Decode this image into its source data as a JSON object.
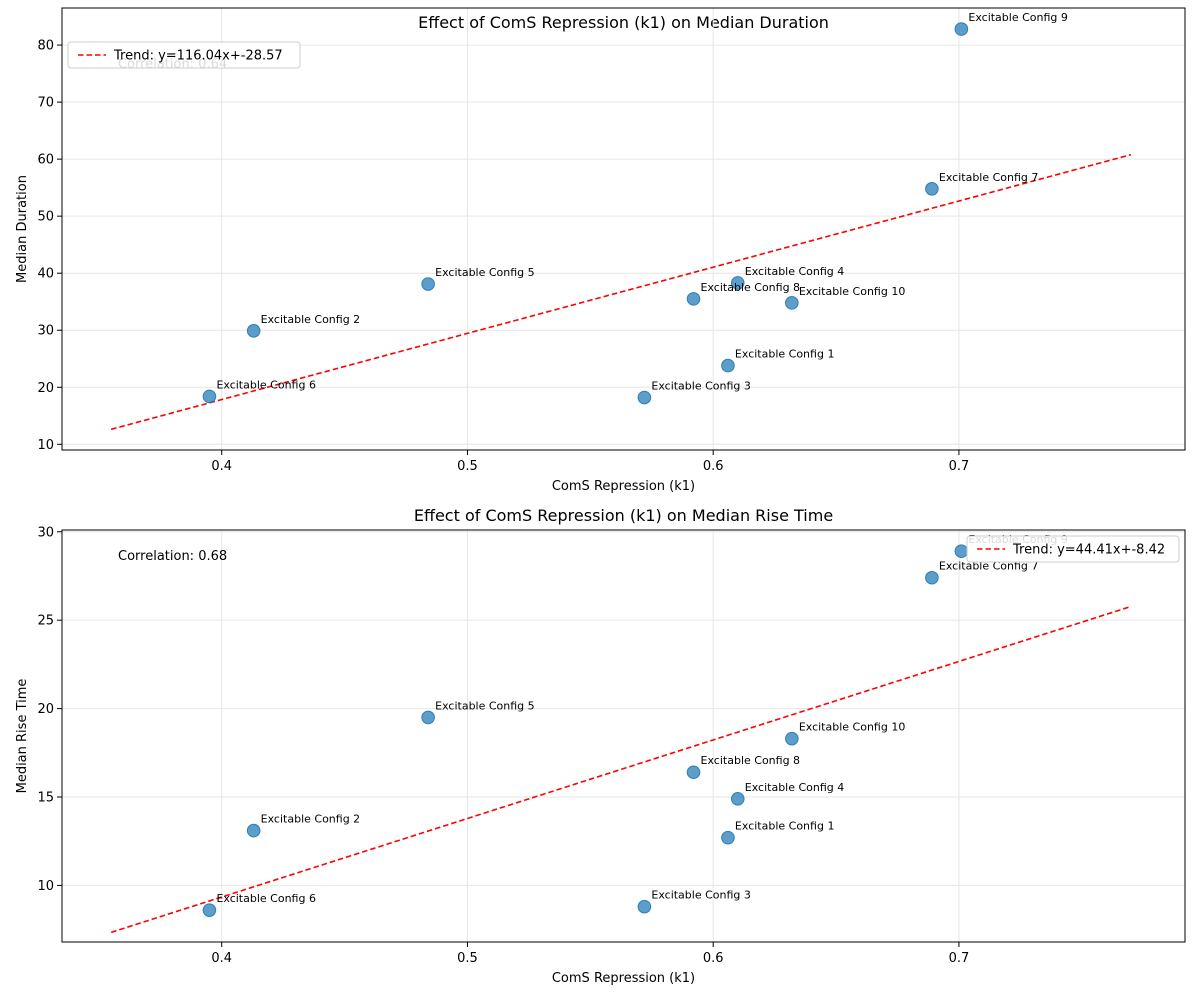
{
  "colors": {
    "point": "#1f77b4",
    "trend": "#ff0000",
    "grid": "#e6e6e6",
    "axis": "#000000"
  },
  "chart_data": [
    {
      "type": "scatter",
      "title": "Effect of ComS Repression (k1) on Median Duration",
      "xlabel": "ComS Repression (k1)",
      "ylabel": "Median Duration",
      "xlim": [
        0.335,
        0.792
      ],
      "ylim": [
        9,
        86.5
      ],
      "xticks": [
        0.4,
        0.5,
        0.6,
        0.7
      ],
      "yticks": [
        10,
        20,
        30,
        40,
        50,
        60,
        70,
        80
      ],
      "grid": true,
      "legend_position": "upper-left",
      "legend_label": "Trend: y=116.04x+-28.57",
      "trend": {
        "slope": 116.04,
        "intercept": -28.57,
        "x_range": [
          0.355,
          0.77
        ]
      },
      "correlation_label": "Correlation: 0.64",
      "points": [
        {
          "label": "Excitable Config 1",
          "x": 0.606,
          "y": 23.8
        },
        {
          "label": "Excitable Config 2",
          "x": 0.413,
          "y": 29.9
        },
        {
          "label": "Excitable Config 3",
          "x": 0.572,
          "y": 18.2
        },
        {
          "label": "Excitable Config 4",
          "x": 0.61,
          "y": 38.3
        },
        {
          "label": "Excitable Config 5",
          "x": 0.484,
          "y": 38.1
        },
        {
          "label": "Excitable Config 6",
          "x": 0.395,
          "y": 18.4
        },
        {
          "label": "Excitable Config 7",
          "x": 0.689,
          "y": 54.8
        },
        {
          "label": "Excitable Config 8",
          "x": 0.592,
          "y": 35.5
        },
        {
          "label": "Excitable Config 9",
          "x": 0.701,
          "y": 82.8
        },
        {
          "label": "Excitable Config 10",
          "x": 0.632,
          "y": 34.8
        }
      ]
    },
    {
      "type": "scatter",
      "title": "Effect of ComS Repression (k1) on Median Rise Time",
      "xlabel": "ComS Repression (k1)",
      "ylabel": "Median Rise Time",
      "xlim": [
        0.335,
        0.792
      ],
      "ylim": [
        6.8,
        30.1
      ],
      "xticks": [
        0.4,
        0.5,
        0.6,
        0.7
      ],
      "yticks": [
        10,
        15,
        20,
        25,
        30
      ],
      "grid": true,
      "legend_position": "upper-right",
      "legend_label": "Trend: y=44.41x+-8.42",
      "trend": {
        "slope": 44.41,
        "intercept": -8.42,
        "x_range": [
          0.355,
          0.77
        ]
      },
      "correlation_label": "Correlation: 0.68",
      "points": [
        {
          "label": "Excitable Config 1",
          "x": 0.606,
          "y": 12.7
        },
        {
          "label": "Excitable Config 2",
          "x": 0.413,
          "y": 13.1
        },
        {
          "label": "Excitable Config 3",
          "x": 0.572,
          "y": 8.8
        },
        {
          "label": "Excitable Config 4",
          "x": 0.61,
          "y": 14.9
        },
        {
          "label": "Excitable Config 5",
          "x": 0.484,
          "y": 19.5
        },
        {
          "label": "Excitable Config 6",
          "x": 0.395,
          "y": 8.6
        },
        {
          "label": "Excitable Config 7",
          "x": 0.689,
          "y": 27.4
        },
        {
          "label": "Excitable Config 8",
          "x": 0.592,
          "y": 16.4
        },
        {
          "label": "Excitable Config 9",
          "x": 0.701,
          "y": 28.9
        },
        {
          "label": "Excitable Config 10",
          "x": 0.632,
          "y": 18.3
        }
      ]
    }
  ]
}
